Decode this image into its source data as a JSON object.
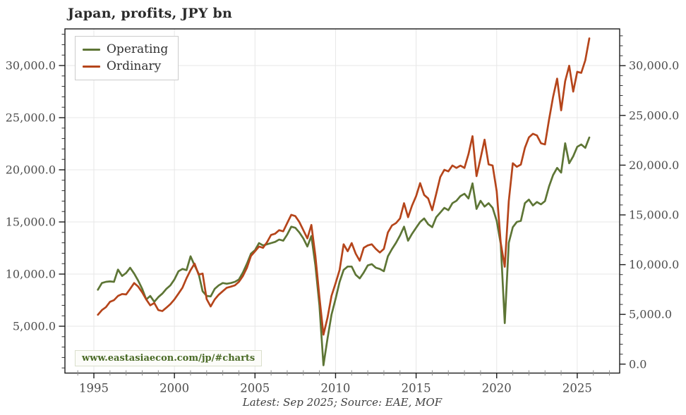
{
  "title": "Japan, profits, JPY bn",
  "caption": "Latest: Sep 2025; Source: EAE, MOF",
  "watermark": "www.eastasiaecon.com/jp/#charts",
  "chart_data": {
    "type": "line",
    "title": "Japan, profits, JPY bn",
    "unit": "JPY bn",
    "frequency": "quarterly",
    "x_start": "1995-Q1",
    "x_end": "2025-Q3",
    "grid": true,
    "legend_position": "upper left",
    "x_tick_values": [
      1995,
      2000,
      2005,
      2010,
      2015,
      2020,
      2025
    ],
    "x_tick_labels": [
      "1995",
      "2000",
      "2005",
      "2010",
      "2015",
      "2020",
      "2025"
    ],
    "left_axis": {
      "tick_values": [
        5000,
        10000,
        15000,
        20000,
        25000,
        30000
      ],
      "tick_labels": [
        "5,000.0",
        "10,000.0",
        "15,000.0",
        "20,000.0",
        "25,000.0",
        "30,000.0"
      ],
      "range": [
        500,
        33500
      ]
    },
    "right_axis": {
      "tick_values": [
        0,
        5000,
        10000,
        15000,
        20000,
        25000,
        30000
      ],
      "tick_labels": [
        "0.0",
        "5,000.0",
        "10,000.0",
        "15,000.0",
        "20,000.0",
        "25,000.0",
        "30,000.0"
      ],
      "range": [
        -900,
        33700
      ]
    },
    "series": [
      {
        "name": "Operating",
        "color": "#5d7535",
        "values": [
          8500,
          9140,
          9260,
          9300,
          9260,
          10430,
          9820,
          10110,
          10610,
          10050,
          9370,
          8580,
          7570,
          7905,
          7340,
          7790,
          8130,
          8580,
          8920,
          9480,
          10270,
          10490,
          10380,
          11700,
          10830,
          10050,
          8350,
          7905,
          7860,
          8580,
          8920,
          9140,
          9075,
          9140,
          9260,
          9480,
          10155,
          11000,
          11960,
          12300,
          12970,
          12750,
          12860,
          12970,
          13090,
          13310,
          13200,
          13800,
          14550,
          14440,
          13990,
          13420,
          12640,
          13650,
          10830,
          7000,
          1260,
          3800,
          6100,
          7600,
          9250,
          10400,
          10720,
          10720,
          9930,
          9590,
          10155,
          10830,
          10950,
          10610,
          10490,
          10270,
          11700,
          12400,
          13000,
          13700,
          14550,
          13200,
          13870,
          14440,
          15000,
          15340,
          14780,
          14500,
          15450,
          15900,
          16350,
          16130,
          16800,
          17030,
          17480,
          17700,
          17250,
          18700,
          16250,
          17030,
          16470,
          16800,
          16350,
          15100,
          12900,
          5300,
          13000,
          14500,
          15000,
          15100,
          16800,
          17140,
          16580,
          16910,
          16690,
          17000,
          18400,
          19500,
          20180,
          19730,
          22550,
          20630,
          21300,
          22200,
          22430,
          22100,
          23100
        ]
      },
      {
        "name": "Ordinary",
        "color": "#b5451b",
        "values": [
          6100,
          6550,
          6830,
          7340,
          7500,
          7905,
          8090,
          8050,
          8580,
          9140,
          8800,
          8240,
          7570,
          7000,
          7230,
          6550,
          6450,
          6780,
          7120,
          7570,
          8130,
          8700,
          9600,
          10380,
          11000,
          9950,
          10050,
          7600,
          6890,
          7570,
          8020,
          8360,
          8690,
          8800,
          8920,
          9260,
          9820,
          10610,
          11740,
          12180,
          12640,
          12520,
          13060,
          13760,
          13870,
          14210,
          14100,
          14900,
          15680,
          15560,
          15000,
          14210,
          13420,
          14710,
          11740,
          7790,
          4190,
          5800,
          7905,
          9100,
          10400,
          12860,
          12190,
          12970,
          11960,
          11280,
          12520,
          12750,
          12860,
          12410,
          12070,
          12410,
          13990,
          14660,
          14890,
          15340,
          16800,
          15450,
          16580,
          17480,
          18720,
          17590,
          17250,
          16130,
          17700,
          19300,
          20000,
          19850,
          20410,
          20180,
          20400,
          20180,
          21500,
          23220,
          19390,
          21100,
          22890,
          20520,
          20410,
          17930,
          13000,
          10700,
          17000,
          20630,
          20290,
          20500,
          22100,
          23110,
          23450,
          23300,
          22550,
          22430,
          24800,
          27000,
          28740,
          25700,
          28500,
          29980,
          27500,
          29400,
          29300,
          30500,
          32600
        ]
      }
    ]
  }
}
